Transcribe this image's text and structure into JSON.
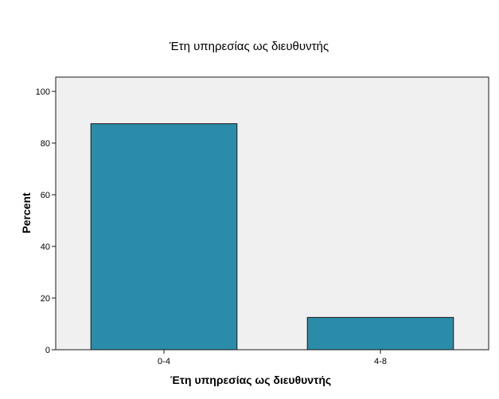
{
  "chart_data": {
    "type": "bar",
    "title": "Έτη υπηρεσίας  ως διευθυντής",
    "xlabel": "Έτη υπηρεσίας  ως διευθυντής",
    "ylabel": "Percent",
    "categories": [
      "0-4",
      "4-8"
    ],
    "values": [
      87.5,
      12.5
    ],
    "ylim": [
      0,
      100
    ],
    "yticks": [
      "0",
      "20",
      "40",
      "60",
      "80",
      "100"
    ],
    "grid": false,
    "legend": "none",
    "colors": {
      "bar_fill": "#2a8ca8",
      "bar_stroke": "#1a1a1a",
      "plot_background": "#f0f0f0",
      "page_background": "#ffffff"
    }
  }
}
